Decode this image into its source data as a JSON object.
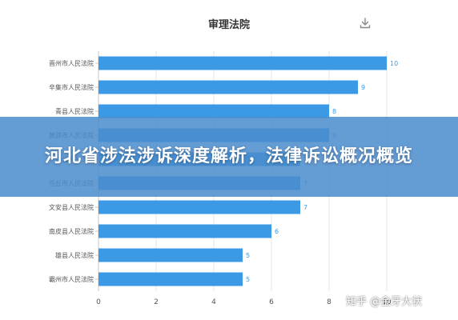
{
  "banner": {
    "text": "河北省涉法涉诉深度解析，法律诉讼概况概览"
  },
  "watermark": {
    "text": "知乎 @金牙大状"
  },
  "colors": {
    "bar": "#3c9ae4",
    "value_label": "#3c9ae4",
    "grid": "#e6e6e6",
    "axis": "#c8c8c8",
    "tick_text": "#555555"
  },
  "chart_data": {
    "type": "bar",
    "orientation": "horizontal",
    "title": "审理法院",
    "categories": [
      "晋州市人民法院",
      "辛集市人民法院",
      "青县人民法院",
      "黄骅市人民法院",
      "涉县人民法院",
      "任丘市人民法院",
      "文安县人民法院",
      "南皮县人民法院",
      "雄县人民法院",
      "霸州市人民法院"
    ],
    "values": [
      10,
      9,
      8,
      8,
      7,
      7,
      7,
      6,
      5,
      5
    ],
    "xlim": [
      0,
      10
    ],
    "xticks": [
      0,
      2,
      4,
      6,
      8,
      10
    ],
    "grid": true,
    "data_labels": true
  }
}
